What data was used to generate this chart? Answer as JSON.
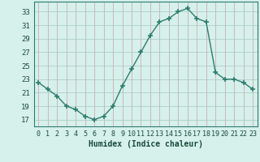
{
  "x": [
    0,
    1,
    2,
    3,
    4,
    5,
    6,
    7,
    8,
    9,
    10,
    11,
    12,
    13,
    14,
    15,
    16,
    17,
    18,
    19,
    20,
    21,
    22,
    23
  ],
  "y": [
    22.5,
    21.5,
    20.5,
    19.0,
    18.5,
    17.5,
    17.0,
    17.5,
    19.0,
    22.0,
    24.5,
    27.0,
    29.5,
    31.5,
    32.0,
    33.0,
    33.5,
    32.0,
    31.5,
    24.0,
    23.0,
    23.0,
    22.5,
    21.5
  ],
  "line_color": "#2e7d6e",
  "marker": "+",
  "markersize": 4,
  "markeredgewidth": 1.2,
  "linewidth": 1.0,
  "bg_color": "#d6f0eb",
  "grid_color_v": "#c8a0a8",
  "grid_color_h": "#a8c8c0",
  "xlabel": "Humidex (Indice chaleur)",
  "xlim": [
    -0.5,
    23.5
  ],
  "ylim": [
    16.0,
    34.5
  ],
  "yticks": [
    17,
    19,
    21,
    23,
    25,
    27,
    29,
    31,
    33
  ],
  "xticks": [
    0,
    1,
    2,
    3,
    4,
    5,
    6,
    7,
    8,
    9,
    10,
    11,
    12,
    13,
    14,
    15,
    16,
    17,
    18,
    19,
    20,
    21,
    22,
    23
  ],
  "xlabel_fontsize": 7,
  "tick_fontsize": 6,
  "spine_color": "#2e7d6e",
  "label_color": "#1a4a3a"
}
